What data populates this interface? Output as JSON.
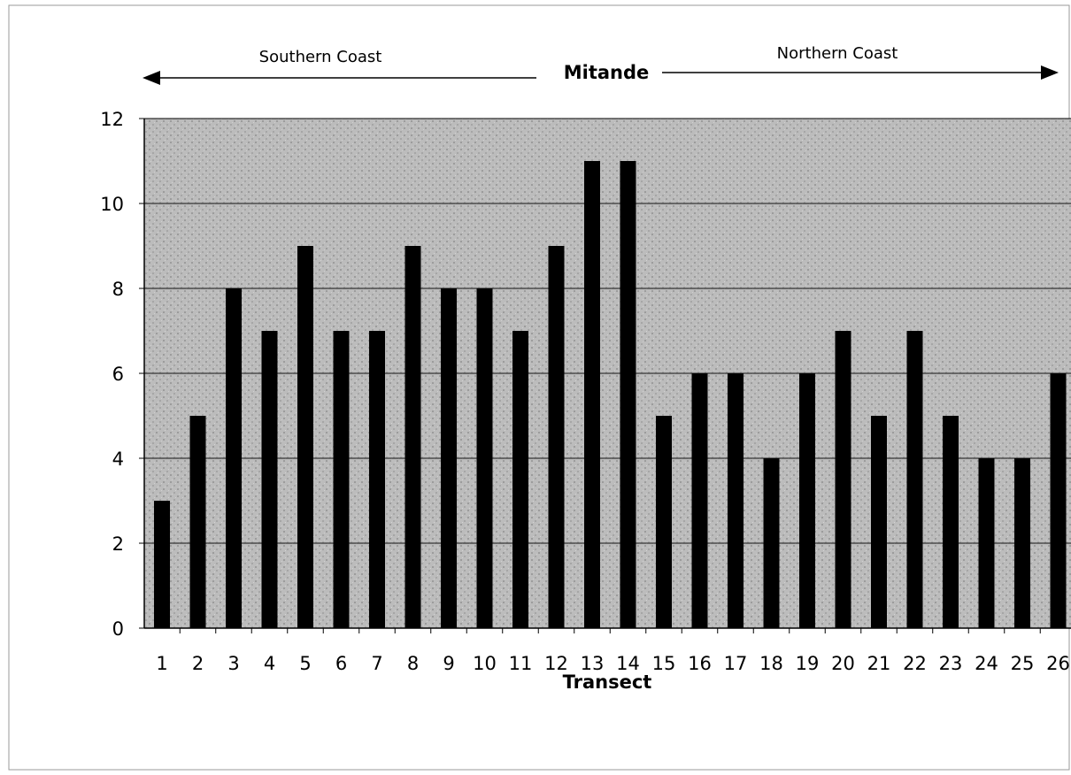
{
  "chart_data": {
    "type": "bar",
    "title": "Mitande",
    "xlabel": "Transect",
    "ylabel": "",
    "ylim": [
      0,
      12
    ],
    "yticks": [
      0,
      2,
      4,
      6,
      8,
      10,
      12
    ],
    "grid": true,
    "legend": "none",
    "categories": [
      "1",
      "2",
      "3",
      "4",
      "5",
      "6",
      "7",
      "8",
      "9",
      "10",
      "11",
      "12",
      "13",
      "14",
      "15",
      "16",
      "17",
      "18",
      "19",
      "20",
      "21",
      "22",
      "23",
      "24",
      "25",
      "26"
    ],
    "values": [
      3,
      5,
      8,
      7,
      9,
      7,
      7,
      9,
      8,
      8,
      7,
      9,
      11,
      11,
      5,
      6,
      6,
      4,
      6,
      7,
      5,
      7,
      5,
      4,
      4,
      6
    ],
    "annotations": {
      "left_region": "Southern Coast",
      "right_region": "Northern Coast"
    },
    "colors": {
      "bar": "#000000",
      "plot_background": "#b9b9b9",
      "gridline": "#111111"
    }
  }
}
